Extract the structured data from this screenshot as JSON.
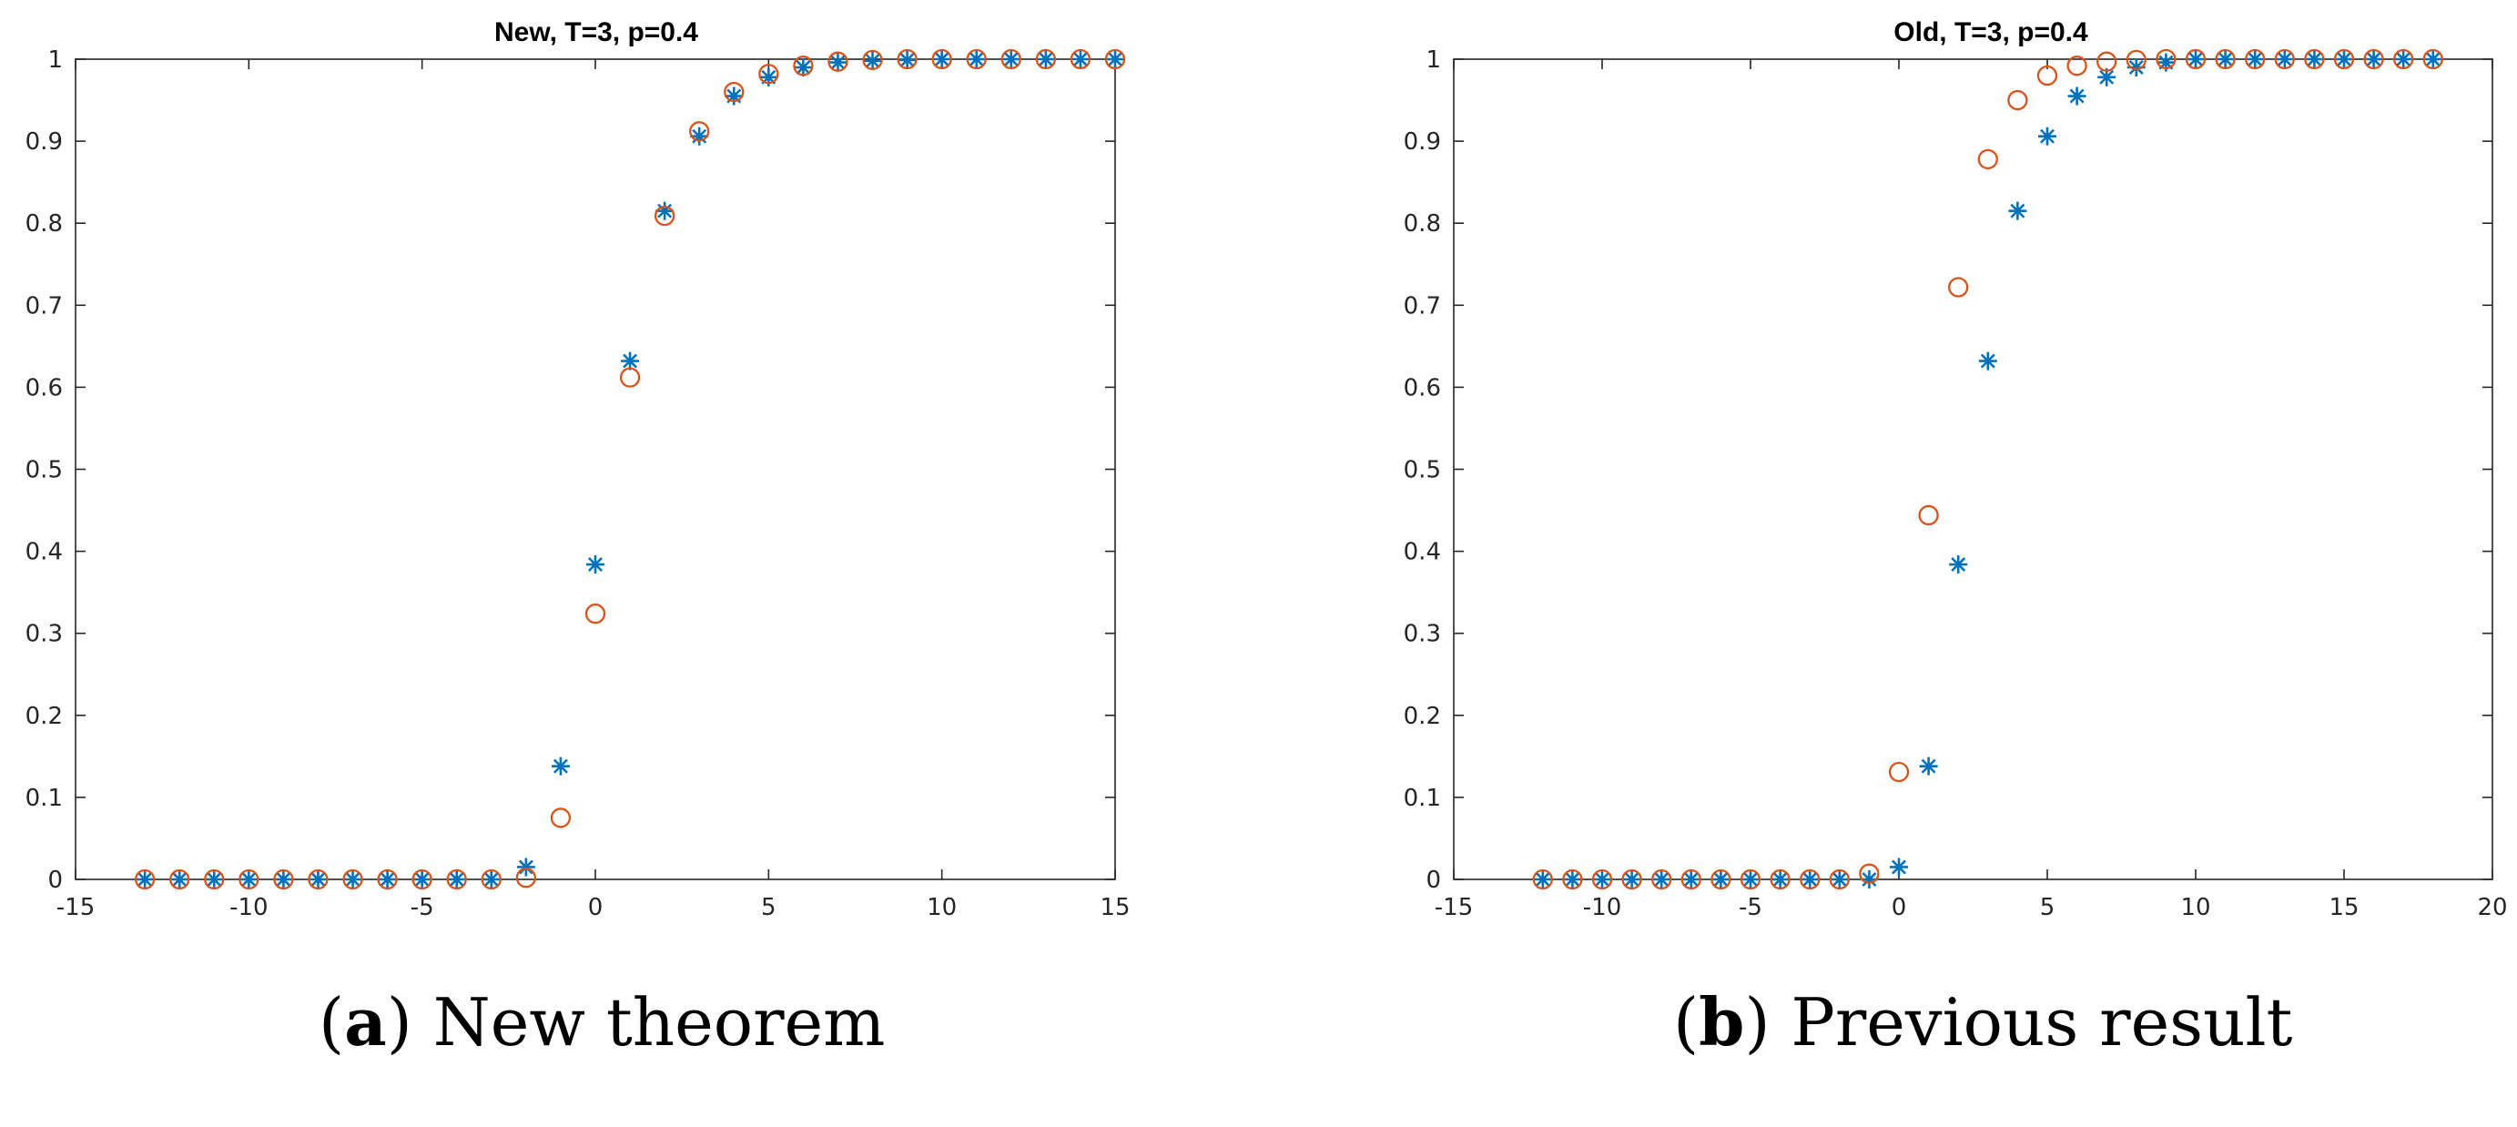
{
  "colors": {
    "series_star": "#0072BD",
    "series_circle": "#D95319",
    "axes": "#262626"
  },
  "captions": [
    {
      "letter": "a",
      "text": "New theorem"
    },
    {
      "letter": "b",
      "text": "Previous result"
    }
  ],
  "chart_data": [
    {
      "type": "scatter",
      "title": "New, T=3, p=0.4",
      "xlabel": "",
      "ylabel": "",
      "xlim": [
        -15,
        15
      ],
      "ylim": [
        0,
        1
      ],
      "xticks": [
        -15,
        -10,
        -5,
        0,
        5,
        10,
        15
      ],
      "yticks": [
        0,
        0.1,
        0.2,
        0.3,
        0.4,
        0.5,
        0.6,
        0.7,
        0.8,
        0.9,
        1
      ],
      "grid": false,
      "series": [
        {
          "marker": "star",
          "x": [
            -13,
            -12,
            -11,
            -10,
            -9,
            -8,
            -7,
            -6,
            -5,
            -4,
            -3,
            -2,
            -1,
            0,
            1,
            2,
            3,
            4,
            5,
            6,
            7,
            8,
            9,
            10,
            11,
            12,
            13,
            14,
            15
          ],
          "values": [
            0,
            0,
            0,
            0,
            0,
            0,
            0,
            0,
            0,
            0,
            0,
            0.015,
            0.138,
            0.384,
            0.632,
            0.815,
            0.906,
            0.955,
            0.978,
            0.99,
            0.996,
            0.998,
            0.999,
            1,
            1,
            1,
            1,
            1,
            1
          ]
        },
        {
          "marker": "circle",
          "x": [
            -13,
            -12,
            -11,
            -10,
            -9,
            -8,
            -7,
            -6,
            -5,
            -4,
            -3,
            -2,
            -1,
            0,
            1,
            2,
            3,
            4,
            5,
            6,
            7,
            8,
            9,
            10,
            11,
            12,
            13,
            14,
            15
          ],
          "values": [
            0,
            0,
            0,
            0,
            0,
            0,
            0,
            0,
            0,
            0,
            0,
            0.002,
            0.075,
            0.324,
            0.612,
            0.809,
            0.912,
            0.96,
            0.982,
            0.992,
            0.997,
            0.999,
            1,
            1,
            1,
            1,
            1,
            1,
            1
          ]
        }
      ]
    },
    {
      "type": "scatter",
      "title": "Old, T=3, p=0.4",
      "xlabel": "",
      "ylabel": "",
      "xlim": [
        -15,
        20
      ],
      "ylim": [
        0,
        1
      ],
      "xticks": [
        -15,
        -10,
        -5,
        0,
        5,
        10,
        15,
        20
      ],
      "yticks": [
        0,
        0.1,
        0.2,
        0.3,
        0.4,
        0.5,
        0.6,
        0.7,
        0.8,
        0.9,
        1
      ],
      "grid": false,
      "series": [
        {
          "marker": "star",
          "x": [
            -12,
            -11,
            -10,
            -9,
            -8,
            -7,
            -6,
            -5,
            -4,
            -3,
            -2,
            -1,
            0,
            1,
            2,
            3,
            4,
            5,
            6,
            7,
            8,
            9,
            10,
            11,
            12,
            13,
            14,
            15,
            16,
            17,
            18
          ],
          "values": [
            0,
            0,
            0,
            0,
            0,
            0,
            0,
            0,
            0,
            0,
            0,
            0,
            0.015,
            0.138,
            0.384,
            0.632,
            0.815,
            0.906,
            0.955,
            0.978,
            0.99,
            0.996,
            1,
            1,
            1,
            1,
            1,
            1,
            1,
            1,
            1
          ]
        },
        {
          "marker": "circle",
          "x": [
            -12,
            -11,
            -10,
            -9,
            -8,
            -7,
            -6,
            -5,
            -4,
            -3,
            -2,
            -1,
            0,
            1,
            2,
            3,
            4,
            5,
            6,
            7,
            8,
            9,
            10,
            11,
            12,
            13,
            14,
            15,
            16,
            17,
            18
          ],
          "values": [
            0,
            0,
            0,
            0,
            0,
            0,
            0,
            0,
            0,
            0,
            0,
            0.007,
            0.131,
            0.444,
            0.722,
            0.878,
            0.95,
            0.98,
            0.992,
            0.997,
            0.999,
            1,
            1,
            1,
            1,
            1,
            1,
            1,
            1,
            1,
            1
          ]
        }
      ]
    }
  ]
}
